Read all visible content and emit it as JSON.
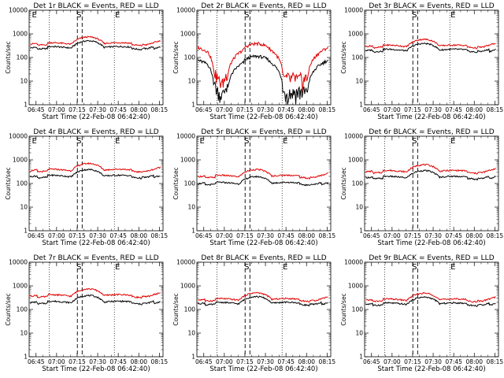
{
  "figure": {
    "xlabel": "Start Time (22-Feb-08 06:42:40)",
    "ylabel": "Counts/sec",
    "x_ticks": [
      "06:45",
      "07:00",
      "07:15",
      "07:30",
      "07:45",
      "08:00",
      "08:15"
    ],
    "y_ticks": [
      "1",
      "10",
      "100",
      "1000",
      "10000"
    ],
    "colors": {
      "events": "#000000",
      "lld": "#e00000"
    }
  },
  "chart_data": [
    {
      "type": "line",
      "title": "Det 1r BLACK = Events, RED = LLD",
      "markers": [
        "E",
        "S",
        "E"
      ],
      "profile": "normal",
      "base_events": 260,
      "base_lld": 380,
      "xlim": [
        -2.7,
        95
      ],
      "ylim": [
        1,
        10000
      ],
      "log_y": true
    },
    {
      "type": "line",
      "title": "Det 2r BLACK = Events, RED = LLD",
      "markers": [
        "",
        "S",
        "E"
      ],
      "profile": "saa",
      "base_events": 70,
      "base_lld": 240,
      "xlim": [
        -2.7,
        95
      ],
      "ylim": [
        1,
        10000
      ],
      "log_y": true
    },
    {
      "type": "line",
      "title": "Det 3r BLACK = Events, RED = LLD",
      "markers": [
        "",
        "S",
        "E"
      ],
      "profile": "normal",
      "base_events": 200,
      "base_lld": 300,
      "xlim": [
        -2.7,
        95
      ],
      "ylim": [
        1,
        10000
      ],
      "log_y": true
    },
    {
      "type": "line",
      "title": "Det 4r BLACK = Events, RED = LLD",
      "markers": [
        "E",
        "S",
        "E"
      ],
      "profile": "normal",
      "base_events": 200,
      "base_lld": 360,
      "xlim": [
        -2.7,
        95
      ],
      "ylim": [
        1,
        10000
      ],
      "log_y": true
    },
    {
      "type": "line",
      "title": "Det 5r BLACK = Events, RED = LLD",
      "markers": [
        "E",
        "S",
        "E"
      ],
      "profile": "normal",
      "base_events": 100,
      "base_lld": 200,
      "xlim": [
        -2.7,
        95
      ],
      "ylim": [
        1,
        10000
      ],
      "log_y": true
    },
    {
      "type": "line",
      "title": "Det 6r BLACK = Events, RED = LLD",
      "markers": [
        "",
        "S",
        "E"
      ],
      "profile": "normal",
      "base_events": 180,
      "base_lld": 320,
      "xlim": [
        -2.7,
        95
      ],
      "ylim": [
        1,
        10000
      ],
      "log_y": true
    },
    {
      "type": "line",
      "title": "Det 7r BLACK = Events, RED = LLD",
      "markers": [
        "",
        "S",
        "E"
      ],
      "profile": "normal",
      "base_events": 200,
      "base_lld": 380,
      "xlim": [
        -2.7,
        95
      ],
      "ylim": [
        1,
        10000
      ],
      "log_y": true
    },
    {
      "type": "line",
      "title": "Det 8r BLACK = Events, RED = LLD",
      "markers": [
        "",
        "S",
        "E"
      ],
      "profile": "normal",
      "base_events": 180,
      "base_lld": 260,
      "xlim": [
        -2.7,
        95
      ],
      "ylim": [
        1,
        10000
      ],
      "log_y": true
    },
    {
      "type": "line",
      "title": "Det 9r BLACK = Events, RED = LLD",
      "markers": [
        "",
        "S",
        "E"
      ],
      "profile": "normal",
      "base_events": 170,
      "base_lld": 250,
      "xlim": [
        -2.7,
        95
      ],
      "ylim": [
        1,
        10000
      ],
      "log_y": true
    }
  ]
}
